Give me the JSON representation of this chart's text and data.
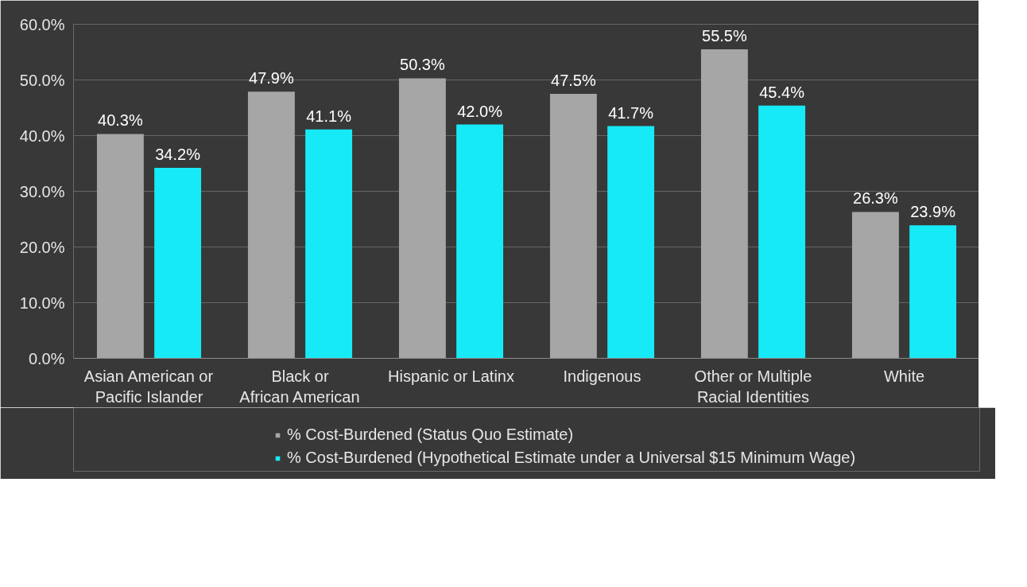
{
  "chart_data": {
    "type": "bar",
    "categories": [
      "Asian American or Pacific Islander",
      "Black or African American",
      "Hispanic or Latinx",
      "Indigenous",
      "Other or Multiple Racial Identities",
      "White"
    ],
    "series": [
      {
        "name": "% Cost-Burdened (Status Quo Estimate)",
        "color": "#a6a6a6",
        "values": [
          40.3,
          47.9,
          50.3,
          47.5,
          55.5,
          26.3
        ],
        "value_labels": [
          "40.3%",
          "47.9%",
          "50.3%",
          "47.5%",
          "55.5%",
          "26.3%"
        ]
      },
      {
        "name": "% Cost-Burdened (Hypothetical Estimate under a Universal $15 Minimum Wage)",
        "color": "#17eaf7",
        "values": [
          34.2,
          41.1,
          42.0,
          41.7,
          45.4,
          23.9
        ],
        "value_labels": [
          "34.2%",
          "41.1%",
          "42.0%",
          "41.7%",
          "45.4%",
          "23.9%"
        ]
      }
    ],
    "ylim": [
      0,
      60
    ],
    "yticks": [
      {
        "value": 0,
        "label": "0.0%"
      },
      {
        "value": 10,
        "label": "10.0%"
      },
      {
        "value": 20,
        "label": "20.0%"
      },
      {
        "value": 30,
        "label": "30.0%"
      },
      {
        "value": 40,
        "label": "40.0%"
      },
      {
        "value": 50,
        "label": "50.0%"
      },
      {
        "value": 60,
        "label": "60.0%"
      }
    ],
    "grid": "y",
    "legend": "bottom"
  }
}
